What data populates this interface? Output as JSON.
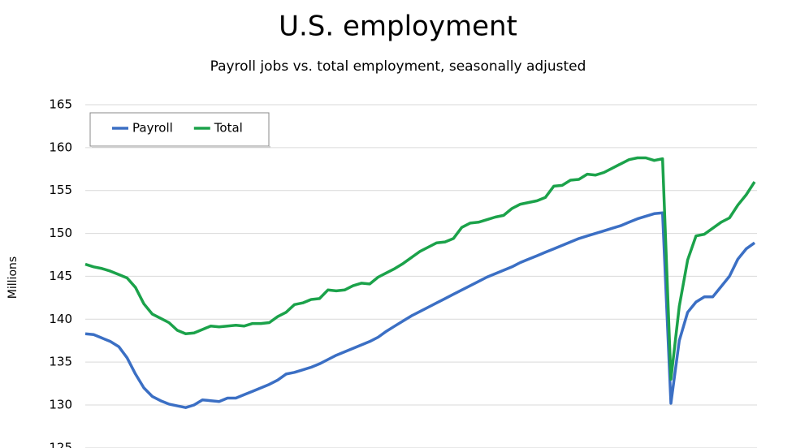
{
  "chart_data": {
    "type": "line",
    "title": "U.S. employment",
    "subtitle": "Payroll jobs vs. total employment, seasonally adjusted",
    "y_label": "Millions",
    "ylim": [
      125,
      165
    ],
    "yticks": [
      125,
      130,
      135,
      140,
      145,
      150,
      155,
      160,
      165
    ],
    "grid": true,
    "legend": "upper-left",
    "series": [
      {
        "name": "Payroll",
        "color": "#3b6fc4",
        "values": [
          138.3,
          138.2,
          137.8,
          137.4,
          136.8,
          135.5,
          133.6,
          132.0,
          131.0,
          130.5,
          130.1,
          129.9,
          129.7,
          130.0,
          130.6,
          130.5,
          130.4,
          130.8,
          130.8,
          131.2,
          131.6,
          132.0,
          132.4,
          132.9,
          133.6,
          133.8,
          134.1,
          134.4,
          134.8,
          135.3,
          135.8,
          136.2,
          136.6,
          137.0,
          137.4,
          137.9,
          138.6,
          139.2,
          139.8,
          140.4,
          140.9,
          141.4,
          141.9,
          142.4,
          142.9,
          143.4,
          143.9,
          144.4,
          144.9,
          145.3,
          145.7,
          146.1,
          146.6,
          147.0,
          147.4,
          147.8,
          148.2,
          148.6,
          149.0,
          149.4,
          149.7,
          150.0,
          150.3,
          150.6,
          150.9,
          151.3,
          151.7,
          152.0,
          152.3,
          152.4,
          130.2,
          137.5,
          140.8,
          142.0,
          142.6,
          142.6,
          143.8,
          145.0,
          147.0,
          148.2,
          148.9
        ]
      },
      {
        "name": "Total",
        "color": "#1ba24a",
        "values": [
          146.4,
          146.1,
          145.9,
          145.6,
          145.2,
          144.8,
          143.7,
          141.8,
          140.6,
          140.1,
          139.6,
          138.7,
          138.3,
          138.4,
          138.8,
          139.2,
          139.1,
          139.2,
          139.3,
          139.2,
          139.5,
          139.5,
          139.6,
          140.3,
          140.8,
          141.7,
          141.9,
          142.3,
          142.4,
          143.4,
          143.3,
          143.4,
          143.9,
          144.2,
          144.1,
          144.9,
          145.4,
          145.9,
          146.5,
          147.2,
          147.9,
          148.4,
          148.9,
          149.0,
          149.4,
          150.7,
          151.2,
          151.3,
          151.6,
          151.9,
          152.1,
          152.9,
          153.4,
          153.6,
          153.8,
          154.2,
          155.5,
          155.6,
          156.2,
          156.3,
          156.9,
          156.8,
          157.1,
          157.6,
          158.1,
          158.6,
          158.8,
          158.8,
          158.5,
          158.7,
          133.0,
          141.5,
          146.9,
          149.7,
          149.9,
          150.6,
          151.3,
          151.8,
          153.3,
          154.5,
          156.0
        ]
      }
    ]
  }
}
